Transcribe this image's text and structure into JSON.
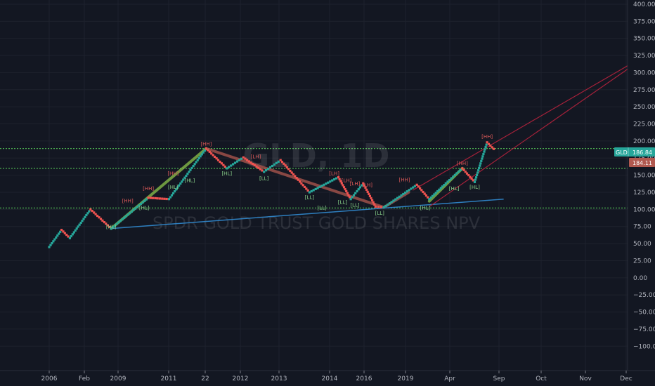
{
  "watermark": {
    "symbol": "GLD, 1D",
    "name": "SPDR GOLD TRUST GOLD SHARES NPV"
  },
  "price_tags": {
    "ticker": "GLD",
    "last": "186.84",
    "alt": "184.11"
  },
  "colors": {
    "bg": "#131722",
    "up": "#26a69a",
    "down": "#ef5350",
    "hline": "#4caf50",
    "trend_up": "#8bc34a",
    "trend_down": "#b0584f",
    "blue_line": "#2e7fbf",
    "channel": "#a5213a",
    "tag_green": "#26a69a",
    "tag_red": "#b0584f",
    "pivot_high": "#e05a5a",
    "pivot_low": "#8bd48b"
  },
  "chart_data": {
    "type": "line",
    "subtype": "point-and-figure style (up boxes teal, down boxes red)",
    "x_ticks": [
      "2006",
      "Feb",
      "2009",
      "2011",
      "22",
      "2012",
      "2013",
      "2014",
      "2016",
      "2019",
      "Apr",
      "Sep",
      "Oct",
      "Nov",
      "Dec"
    ],
    "y_ticks": [
      "400.00",
      "375.00",
      "350.00",
      "325.00",
      "300.00",
      "275.00",
      "250.00",
      "225.00",
      "200.00",
      "175.00",
      "150.00",
      "125.00",
      "100.00",
      "75.00",
      "50.00",
      "25.00",
      "0.00",
      "−25.00",
      "−50.00",
      "−75.00",
      "−100.00"
    ],
    "ylim": [
      -112,
      402
    ],
    "x_range": [
      0,
      14
    ],
    "pivots": [
      {
        "x": 0,
        "y": 45
      },
      {
        "x": 0.3,
        "y": 70
      },
      {
        "x": 0.5,
        "y": 58
      },
      {
        "x": 1.0,
        "y": 100
      },
      {
        "x": 1.5,
        "y": 72
      },
      {
        "x": 2.4,
        "y": 117
      },
      {
        "x": 2.9,
        "y": 115
      },
      {
        "x": 3.8,
        "y": 189
      },
      {
        "x": 4.3,
        "y": 160
      },
      {
        "x": 4.7,
        "y": 176
      },
      {
        "x": 5.2,
        "y": 155
      },
      {
        "x": 5.6,
        "y": 172
      },
      {
        "x": 6.3,
        "y": 125
      },
      {
        "x": 7.0,
        "y": 147
      },
      {
        "x": 7.3,
        "y": 115
      },
      {
        "x": 7.6,
        "y": 138
      },
      {
        "x": 7.9,
        "y": 104
      },
      {
        "x": 8.1,
        "y": 103
      },
      {
        "x": 8.9,
        "y": 136
      },
      {
        "x": 9.2,
        "y": 115
      },
      {
        "x": 9.6,
        "y": 138
      },
      {
        "x": 10.0,
        "y": 160
      },
      {
        "x": 10.3,
        "y": 140
      },
      {
        "x": 10.6,
        "y": 198
      },
      {
        "x": 10.8,
        "y": 186
      }
    ],
    "horizontal_levels": [
      189,
      160,
      102
    ],
    "pivot_labels": [
      {
        "text": "[HL]",
        "x": 1.5,
        "y": 72,
        "kind": "low"
      },
      {
        "text": "[HH]",
        "x": 1.9,
        "y": 110,
        "kind": "high"
      },
      {
        "text": "[HH]",
        "x": 2.4,
        "y": 128,
        "kind": "high"
      },
      {
        "text": "[HL]",
        "x": 2.3,
        "y": 100,
        "kind": "low"
      },
      {
        "text": "[HL]",
        "x": 3.0,
        "y": 130,
        "kind": "low"
      },
      {
        "text": "[HL]",
        "x": 3.4,
        "y": 140,
        "kind": "low"
      },
      {
        "text": "[HH]",
        "x": 3.0,
        "y": 150,
        "kind": "high"
      },
      {
        "text": "[HH]",
        "x": 3.8,
        "y": 193,
        "kind": "high"
      },
      {
        "text": "[HL]",
        "x": 4.3,
        "y": 150,
        "kind": "low"
      },
      {
        "text": "[LL]",
        "x": 5.2,
        "y": 143,
        "kind": "low"
      },
      {
        "text": "[LH]",
        "x": 5.0,
        "y": 175,
        "kind": "high"
      },
      {
        "text": "[LL]",
        "x": 6.3,
        "y": 115,
        "kind": "low"
      },
      {
        "text": "[LL]",
        "x": 6.6,
        "y": 100,
        "kind": "low"
      },
      {
        "text": "[LH]",
        "x": 6.9,
        "y": 150,
        "kind": "high"
      },
      {
        "text": "[LH]",
        "x": 7.2,
        "y": 140,
        "kind": "high"
      },
      {
        "text": "[LL]",
        "x": 7.1,
        "y": 108,
        "kind": "low"
      },
      {
        "text": "[LH]",
        "x": 7.4,
        "y": 135,
        "kind": "high"
      },
      {
        "text": "[LH]",
        "x": 7.7,
        "y": 133,
        "kind": "high"
      },
      {
        "text": "[LL]",
        "x": 7.4,
        "y": 104,
        "kind": "low"
      },
      {
        "text": "[LL]",
        "x": 8.0,
        "y": 92,
        "kind": "low"
      },
      {
        "text": "[HH]",
        "x": 8.6,
        "y": 141,
        "kind": "high"
      },
      {
        "text": "[HL]",
        "x": 9.1,
        "y": 100,
        "kind": "low"
      },
      {
        "text": "[HH]",
        "x": 10.0,
        "y": 165,
        "kind": "high"
      },
      {
        "text": "[HL]",
        "x": 9.8,
        "y": 128,
        "kind": "low"
      },
      {
        "text": "[HL]",
        "x": 10.3,
        "y": 130,
        "kind": "low"
      },
      {
        "text": "[HH]",
        "x": 10.6,
        "y": 204,
        "kind": "high"
      }
    ],
    "trend_segments": [
      {
        "x1": 1.5,
        "y1": 72,
        "x2": 3.8,
        "y2": 189,
        "kind": "up"
      },
      {
        "x1": 3.8,
        "y1": 189,
        "x2": 8.1,
        "y2": 103,
        "kind": "down"
      },
      {
        "x1": 8.1,
        "y1": 103,
        "x2": 8.7,
        "y2": 125,
        "kind": "down"
      },
      {
        "x1": 9.2,
        "y1": 112,
        "x2": 10.0,
        "y2": 160,
        "kind": "up"
      }
    ],
    "blue_trendline": {
      "x1": 1.5,
      "y1": 72,
      "x2": 11.0,
      "y2": 115
    },
    "channel_lines": [
      {
        "x1": 8.8,
        "y1": 128,
        "x2": 14.0,
        "y2": 310
      },
      {
        "x1": 9.2,
        "y1": 104,
        "x2": 14.0,
        "y2": 305
      }
    ],
    "title": "",
    "xlabel": "",
    "ylabel": "",
    "grid": true
  }
}
